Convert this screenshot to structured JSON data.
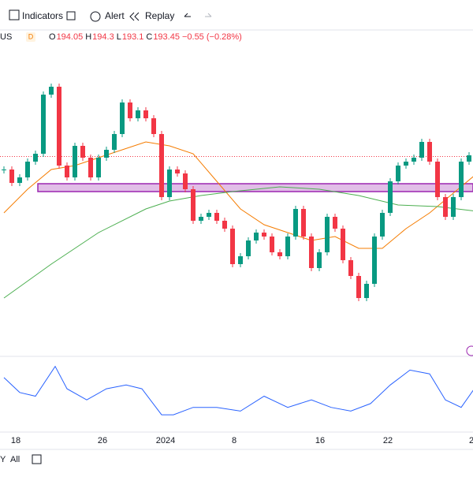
{
  "toolbar": {
    "indicators": "Indicators",
    "alert": "Alert",
    "replay": "Replay"
  },
  "bottombar": {
    "range_y": "Y",
    "range_all": "All"
  },
  "chart_data": {
    "type": "candlestick",
    "symbol": "US",
    "interval": "D",
    "legend": {
      "open": {
        "label": "O",
        "value": 194.05
      },
      "high": {
        "label": "H",
        "value": 194.3
      },
      "low": {
        "label": "L",
        "value": 193.1
      },
      "close": {
        "label": "C",
        "value": 193.45
      },
      "change": "−0.55 (−0.28%)"
    },
    "values": [
      191.8,
      190.1,
      190.8,
      192.8,
      193.8,
      201.3,
      202.3,
      192.3,
      190.8,
      194.8,
      193.3,
      190.8,
      193.3,
      194.3,
      196.3,
      200.3,
      198.3,
      199.3,
      198.3,
      196.3,
      188.3,
      191.8,
      191.3,
      189.3,
      185.3,
      185.8,
      186.3,
      185.3,
      184.3,
      179.8,
      180.8,
      182.8,
      183.8,
      183.3,
      181.3,
      180.8,
      183.3,
      186.8,
      183.3,
      179.3,
      181.3,
      185.8,
      184.3,
      180.3,
      178.3,
      175.5,
      177.3,
      183.3,
      186.3,
      190.3,
      192.3,
      192.8,
      193.3,
      195.3,
      192.8,
      188.3,
      185.8,
      188.3,
      192.8,
      193.6
    ],
    "up_color": "#089981",
    "down_color": "#f23645",
    "ylim": [
      168.3,
      209.3
    ],
    "zone": {
      "low": 189.0,
      "high": 190.0,
      "color": "#9c27b0"
    },
    "moving_averages": [
      {
        "color": "#f57c00",
        "x": [
          0,
          3,
          6,
          9,
          12,
          15,
          18,
          21,
          24,
          27,
          30,
          33,
          36,
          39,
          42,
          45,
          48,
          51,
          54,
          57,
          60
        ],
        "values": [
          186.3,
          189.3,
          191.8,
          192.3,
          193.3,
          194.3,
          195.3,
          194.8,
          193.8,
          190.3,
          186.8,
          184.8,
          183.8,
          182.8,
          183.3,
          181.8,
          181.8,
          184.3,
          186.3,
          188.8,
          191.3
        ]
      },
      {
        "color": "#4caf50",
        "x": [
          0,
          6,
          12,
          18,
          21,
          25,
          29,
          35,
          40,
          45,
          50,
          55,
          60
        ],
        "values": [
          175.5,
          179.8,
          183.8,
          186.8,
          187.8,
          188.5,
          189.0,
          189.6,
          189.3,
          188.5,
          187.3,
          187.1,
          186.5
        ]
      }
    ],
    "oscillator": {
      "color": "#2962ff",
      "ylim": [
        -4.5,
        4.5
      ],
      "x": [
        0,
        2,
        4,
        6.5,
        8,
        10.5,
        13,
        15.5,
        17.5,
        20,
        21.5,
        24,
        27,
        30,
        33,
        36,
        39,
        41.5,
        44,
        46.5,
        49,
        51.5,
        54,
        56,
        58,
        60
      ],
      "values": [
        2.5,
        0.5,
        0,
        4,
        1,
        -0.5,
        1,
        1.5,
        1,
        -2.5,
        -2.5,
        -1.5,
        -1.5,
        -2,
        0,
        -1.5,
        -0.5,
        -1.5,
        -2,
        -1,
        1.5,
        3.5,
        3,
        -0.5,
        -1.5,
        1.5
      ]
    },
    "x_labels": [
      {
        "index": 1.5,
        "label": "18"
      },
      {
        "index": 12.5,
        "label": "26"
      },
      {
        "index": 20.5,
        "label": "2024"
      },
      {
        "index": 29.2,
        "label": "8"
      },
      {
        "index": 40.1,
        "label": "16"
      },
      {
        "index": 48.7,
        "label": "22"
      },
      {
        "index": 59.3,
        "label": "2"
      }
    ]
  }
}
